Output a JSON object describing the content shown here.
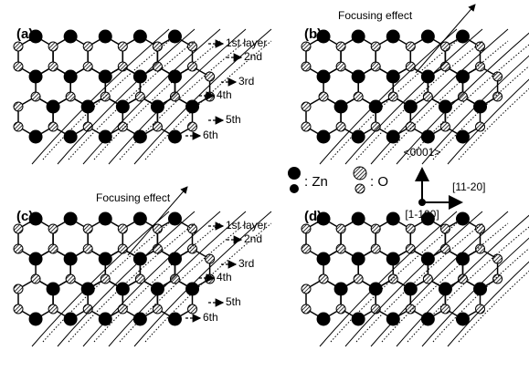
{
  "panels": [
    {
      "label": "(a)",
      "layers": [
        "1st layer",
        "2nd",
        "3rd",
        "4th",
        "5th",
        "6th"
      ]
    },
    {
      "label": "(b)",
      "annotation": "Focusing effect"
    },
    {
      "label": "(c)",
      "annotation": "Focusing effect",
      "layers": [
        "1st layer",
        "2nd",
        "3rd",
        "4th",
        "5th",
        "6th"
      ]
    },
    {
      "label": "(d)"
    }
  ],
  "legend": {
    "zn": ": Zn",
    "o": ": O"
  },
  "axes": {
    "up": "<0001>",
    "right": "[11-20]",
    "view": "[1-100]"
  }
}
